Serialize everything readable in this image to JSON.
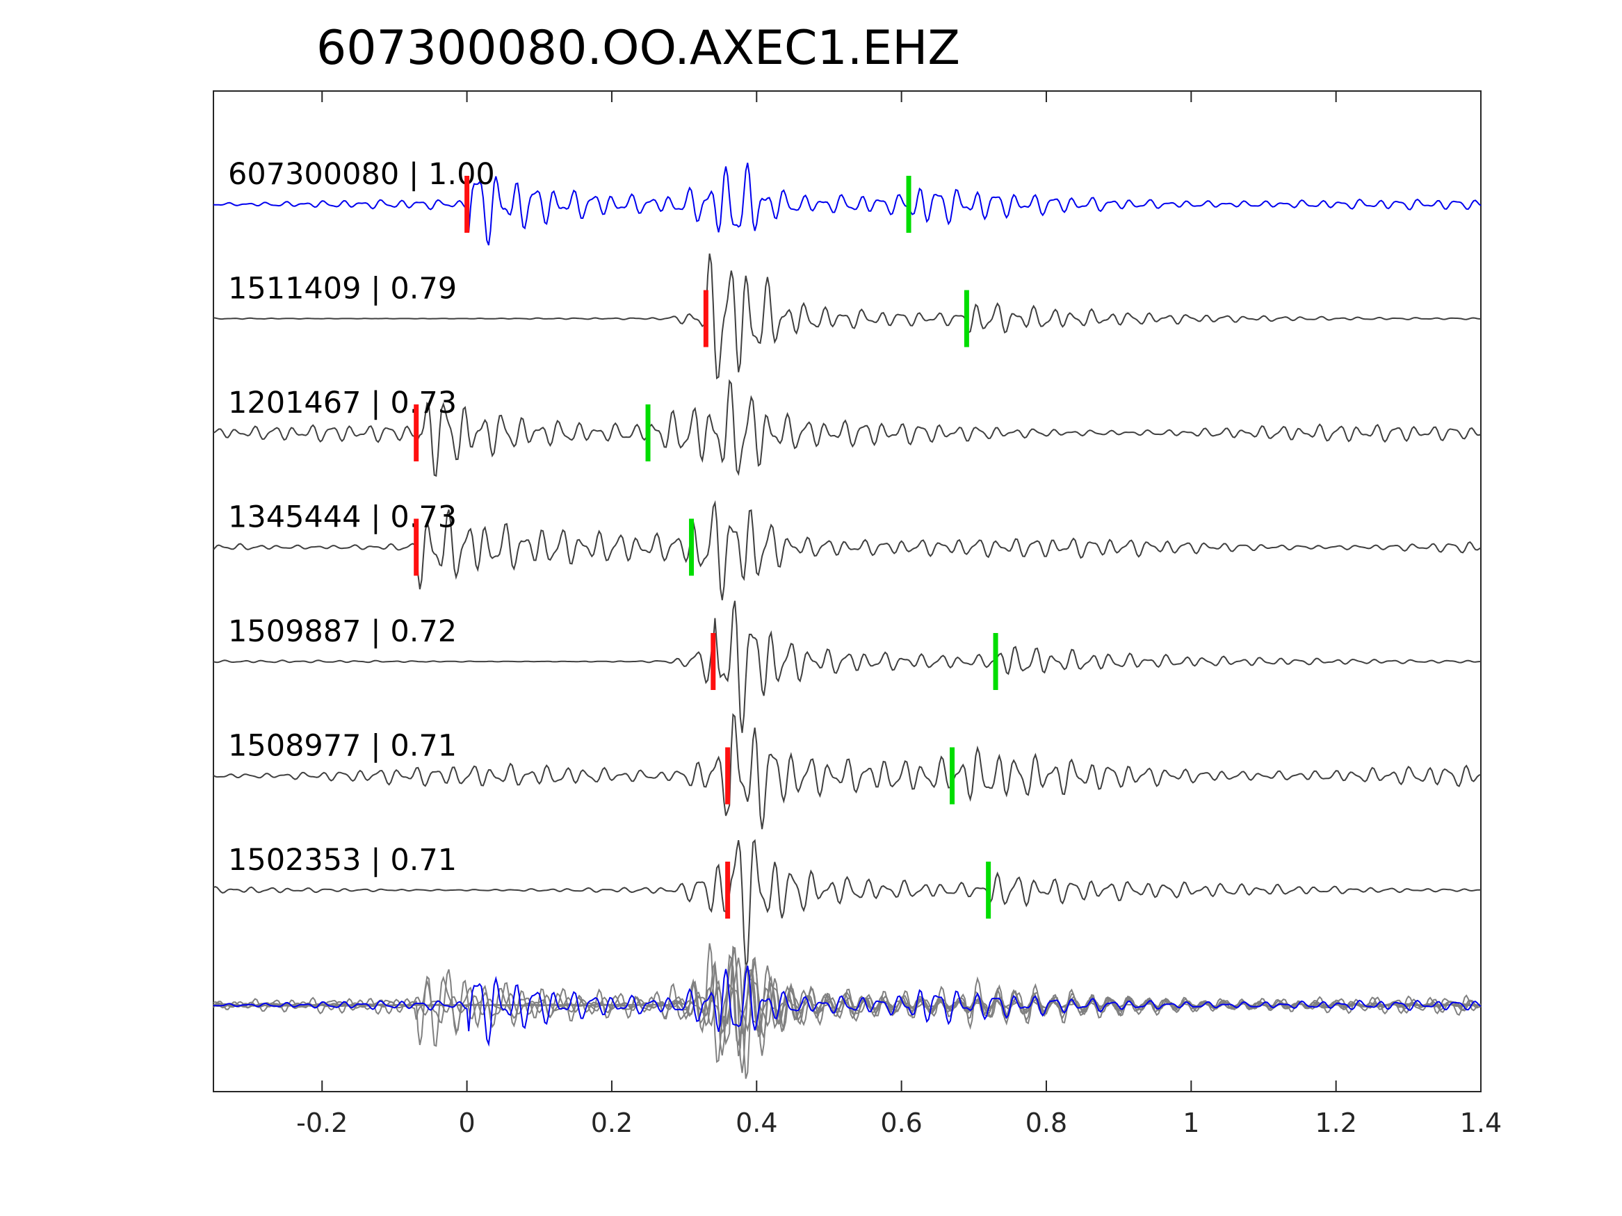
{
  "chart_data": {
    "type": "line",
    "title": "607300080.OO.AXEC1.EHZ",
    "xlabel": "",
    "ylabel": "",
    "xlim": [
      -0.35,
      1.4
    ],
    "xticks": [
      -0.2,
      0,
      0.2,
      0.4,
      0.6,
      0.8,
      1,
      1.2,
      1.4
    ],
    "xtick_labels": [
      "-0.2",
      "0",
      "0.2",
      "0.4",
      "0.6",
      "0.8",
      "1",
      "1.2",
      "1.4"
    ],
    "grid": false,
    "colors": {
      "master": "#0000ee",
      "trace": "#3f3f3f",
      "stack": "#808080",
      "p_pick": "#ff1010",
      "s_pick": "#00dd00",
      "axes": "#262626"
    },
    "traces": [
      {
        "label": "607300080 | 1.00",
        "p_pick": 0.0,
        "s_pick": 0.61,
        "master": true,
        "onset": 0.0,
        "noise": 0.12
      },
      {
        "label": "1511409 | 0.79",
        "p_pick": 0.33,
        "s_pick": 0.69,
        "master": false,
        "onset": 0.33,
        "noise": 0.02
      },
      {
        "label": "1201467 | 0.73",
        "p_pick": -0.07,
        "s_pick": 0.25,
        "master": false,
        "onset": -0.07,
        "noise": 0.22
      },
      {
        "label": "1345444 | 0.73",
        "p_pick": -0.07,
        "s_pick": 0.31,
        "master": false,
        "onset": -0.07,
        "noise": 0.22
      },
      {
        "label": "1509887 | 0.72",
        "p_pick": 0.34,
        "s_pick": 0.73,
        "master": false,
        "onset": 0.34,
        "noise": 0.03
      },
      {
        "label": "1508977 | 0.71",
        "p_pick": 0.36,
        "s_pick": 0.67,
        "master": false,
        "onset": 0.36,
        "noise": 0.28
      },
      {
        "label": "1502353 | 0.71",
        "p_pick": 0.36,
        "s_pick": 0.72,
        "master": false,
        "onset": 0.36,
        "noise": 0.08
      }
    ],
    "stack_peak": 0.37
  }
}
